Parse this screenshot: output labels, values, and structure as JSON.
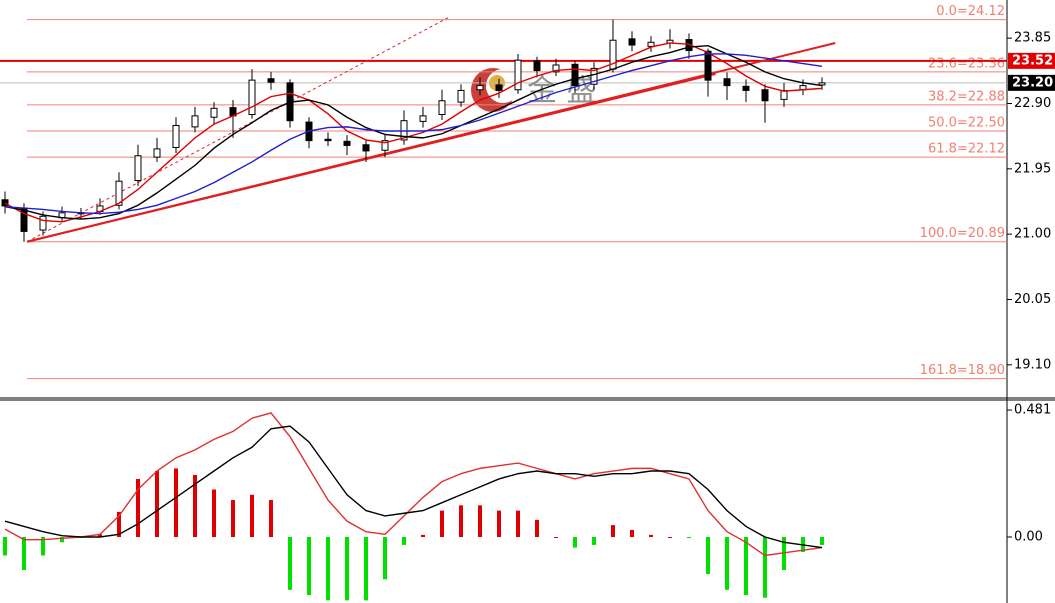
{
  "chart_data": [
    {
      "type": "candlestick",
      "open": [
        21.5,
        21.38,
        21.06,
        21.24,
        21.3,
        21.33,
        21.42,
        21.78,
        22.12,
        22.26,
        22.56,
        22.7,
        22.84,
        22.74,
        23.26,
        23.2,
        22.63,
        22.38,
        22.35,
        22.3,
        22.22,
        22.37,
        22.64,
        22.74,
        22.92,
        23.1,
        23.17,
        23.1,
        23.52,
        23.36,
        23.47,
        23.18,
        23.4,
        23.84,
        23.73,
        23.78,
        23.83,
        23.66,
        23.26,
        23.15,
        23.1,
        22.96,
        23.1,
        23.17
      ],
      "high": [
        21.62,
        21.45,
        21.33,
        21.4,
        21.38,
        21.52,
        21.9,
        22.3,
        22.4,
        22.7,
        22.85,
        22.92,
        22.95,
        23.4,
        23.36,
        23.25,
        22.7,
        22.48,
        22.44,
        22.38,
        22.45,
        22.8,
        22.85,
        23.1,
        23.18,
        23.28,
        23.26,
        23.62,
        23.58,
        23.55,
        23.52,
        23.5,
        24.12,
        23.95,
        23.88,
        23.98,
        23.92,
        23.7,
        23.35,
        23.25,
        23.18,
        23.2,
        23.25,
        23.28
      ],
      "low": [
        21.3,
        20.89,
        20.98,
        21.18,
        21.22,
        21.28,
        21.36,
        21.7,
        22.05,
        22.18,
        22.48,
        22.6,
        22.4,
        22.68,
        23.1,
        22.55,
        22.25,
        22.28,
        22.15,
        22.05,
        22.12,
        22.3,
        22.55,
        22.66,
        22.85,
        23.02,
        22.98,
        23.04,
        23.28,
        23.3,
        23.05,
        23.1,
        23.35,
        23.66,
        23.65,
        23.7,
        23.55,
        23.0,
        22.95,
        22.92,
        22.62,
        22.85,
        23.02,
        23.1
      ],
      "close": [
        21.41,
        21.04,
        21.26,
        21.31,
        21.31,
        21.41,
        21.77,
        22.14,
        22.24,
        22.58,
        22.72,
        22.83,
        22.72,
        23.24,
        23.21,
        22.65,
        22.36,
        22.36,
        22.29,
        22.21,
        22.36,
        22.65,
        22.72,
        22.94,
        23.09,
        23.16,
        23.09,
        23.53,
        23.38,
        23.46,
        23.16,
        23.41,
        23.82,
        23.75,
        23.79,
        23.82,
        23.67,
        23.24,
        23.16,
        23.09,
        22.94,
        23.09,
        23.16,
        23.2
      ],
      "series": [
        {
          "color": "#e00000",
          "values": [
            21.45,
            21.3,
            21.2,
            21.18,
            21.25,
            21.33,
            21.45,
            21.65,
            21.9,
            22.15,
            22.4,
            22.6,
            22.72,
            22.85,
            23.0,
            23.05,
            22.95,
            22.75,
            22.5,
            22.37,
            22.33,
            22.4,
            22.48,
            22.6,
            22.78,
            22.95,
            23.05,
            23.2,
            23.3,
            23.38,
            23.4,
            23.38,
            23.48,
            23.6,
            23.72,
            23.78,
            23.76,
            23.64,
            23.48,
            23.3,
            23.15,
            23.08,
            23.1,
            23.12
          ]
        },
        {
          "color": "#000000",
          "values": [
            21.4,
            21.35,
            21.28,
            21.24,
            21.22,
            21.24,
            21.3,
            21.42,
            21.6,
            21.8,
            22.0,
            22.25,
            22.45,
            22.62,
            22.8,
            22.92,
            22.95,
            22.88,
            22.7,
            22.55,
            22.45,
            22.42,
            22.4,
            22.46,
            22.58,
            22.7,
            22.82,
            22.95,
            23.08,
            23.18,
            23.26,
            23.32,
            23.4,
            23.5,
            23.58,
            23.64,
            23.72,
            23.74,
            23.62,
            23.5,
            23.36,
            23.26,
            23.2,
            23.16
          ]
        },
        {
          "color": "#1f1fd0",
          "values": [
            21.4,
            21.38,
            21.36,
            21.33,
            21.31,
            21.3,
            21.32,
            21.36,
            21.42,
            21.52,
            21.62,
            21.75,
            21.9,
            22.05,
            22.22,
            22.38,
            22.5,
            22.55,
            22.56,
            22.52,
            22.5,
            22.5,
            22.5,
            22.52,
            22.58,
            22.66,
            22.76,
            22.86,
            22.96,
            23.06,
            23.14,
            23.22,
            23.3,
            23.38,
            23.45,
            23.52,
            23.58,
            23.62,
            23.62,
            23.6,
            23.56,
            23.52,
            23.48,
            23.44
          ]
        }
      ],
      "ylim": [
        18.632,
        24.405
      ],
      "yticks": [
        23.85,
        {
          "value": 22.9,
          "label": "22.90"
        },
        21.95,
        {
          "value": 21,
          "label": "21.00"
        },
        20.05,
        {
          "value": 19.1,
          "label": "19.10"
        }
      ],
      "fib_levels": [
        {
          "value": 24.12,
          "label": "0.0=24.12"
        },
        {
          "value": 23.36,
          "label": "23.6=23.36"
        },
        {
          "value": 22.88,
          "label": "38.2=22.88"
        },
        {
          "value": 22.5,
          "label": "50.0=22.50"
        },
        {
          "value": 22.12,
          "label": "61.8=22.12"
        },
        {
          "value": 20.89,
          "label": "100.0=20.89"
        },
        {
          "value": 18.9,
          "label": "161.8=18.90"
        }
      ],
      "fib_color": "#f08070",
      "price_markers": [
        {
          "value": 23.52,
          "label": "23.52",
          "color": "#e00000"
        },
        {
          "value": 23.2,
          "label": "23.20",
          "color": "#000000"
        }
      ],
      "trendlines": [
        {
          "x": [
            1.16,
            43.7
          ],
          "values": [
            20.89,
            23.78
          ],
          "color": "#e02020",
          "dashed": false
        },
        {
          "x": [
            1.16,
            37.4
          ],
          "values": [
            20.89,
            23.33
          ],
          "color": "#e02020",
          "dashed": false
        },
        {
          "x": [
            1.16,
            23.4
          ],
          "values": [
            20.89,
            24.16
          ],
          "color": "#e02020",
          "dashed": true
        }
      ],
      "watermark": "金 盛"
    },
    {
      "type": "macd",
      "values": [
        -0.07,
        -0.125,
        -0.07,
        -0.02,
        -0.004,
        0.01,
        0.095,
        0.22,
        0.25,
        0.26,
        0.235,
        0.18,
        0.14,
        0.16,
        0.14,
        -0.2,
        -0.22,
        -0.24,
        -0.24,
        -0.24,
        -0.16,
        -0.03,
        0.008,
        0.1,
        0.12,
        0.12,
        0.1,
        0.1,
        0.065,
        0.0,
        -0.04,
        -0.03,
        0.045,
        0.027,
        0.008,
        0.0,
        -0.004,
        -0.14,
        -0.2,
        -0.22,
        -0.23,
        -0.125,
        -0.057,
        -0.03
      ],
      "up_color": "#e00000",
      "down_color": "#00e000",
      "series": [
        {
          "color": "#e03030",
          "values": [
            0.03,
            -0.01,
            -0.01,
            -0.005,
            0.0,
            0.01,
            0.08,
            0.18,
            0.25,
            0.3,
            0.33,
            0.37,
            0.4,
            0.45,
            0.47,
            0.38,
            0.26,
            0.14,
            0.06,
            0.02,
            0.01,
            0.08,
            0.15,
            0.21,
            0.24,
            0.26,
            0.27,
            0.28,
            0.26,
            0.24,
            0.22,
            0.24,
            0.25,
            0.26,
            0.26,
            0.24,
            0.22,
            0.1,
            0.02,
            -0.02,
            -0.07,
            -0.06,
            -0.05,
            -0.04
          ]
        },
        {
          "color": "#000000",
          "values": [
            0.06,
            0.04,
            0.02,
            0.005,
            0.0,
            0.0,
            0.01,
            0.05,
            0.1,
            0.15,
            0.2,
            0.25,
            0.3,
            0.34,
            0.41,
            0.42,
            0.36,
            0.26,
            0.16,
            0.1,
            0.08,
            0.09,
            0.1,
            0.13,
            0.16,
            0.19,
            0.22,
            0.24,
            0.25,
            0.24,
            0.24,
            0.23,
            0.24,
            0.24,
            0.25,
            0.25,
            0.24,
            0.18,
            0.1,
            0.04,
            0.0,
            -0.02,
            -0.03,
            -0.04
          ]
        }
      ],
      "ylim": [
        -0.25,
        0.519
      ],
      "yticks": [
        0.481,
        {
          "value": 0,
          "label": "0.00"
        }
      ]
    }
  ]
}
